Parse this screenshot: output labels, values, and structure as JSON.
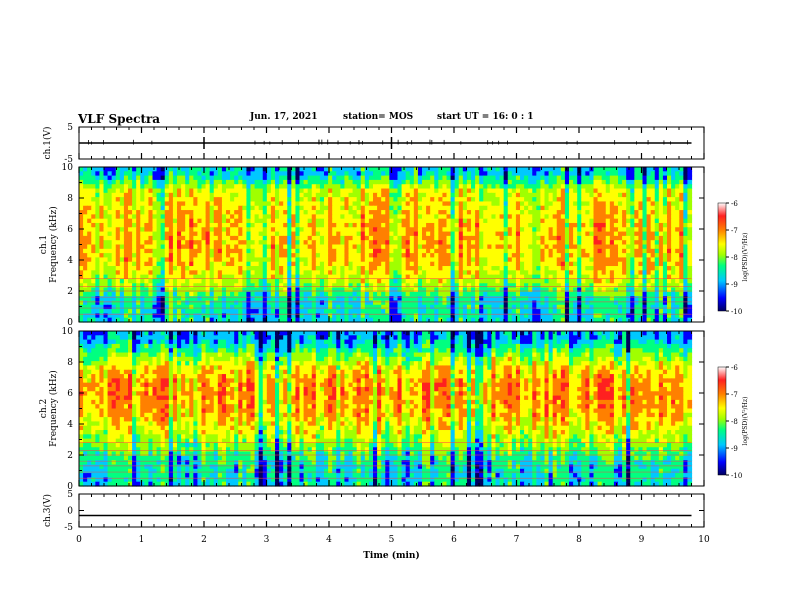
{
  "header": {
    "title": "VLF Spectra",
    "date": "Jun. 17, 2021",
    "station": "station= MOS",
    "start_ut": "start  UT =   16: 0  : 1"
  },
  "colors": {
    "colormap": [
      "#000060",
      "#0000ff",
      "#00c8ff",
      "#00ff80",
      "#a0ff00",
      "#ffff00",
      "#ff8000",
      "#ff2020",
      "#ffffff"
    ],
    "trace": "#000000",
    "background": "#ffffff"
  },
  "chart_data": [
    {
      "type": "line",
      "panel": "ch1_voltage",
      "ylabel": "ch.1(V)",
      "ylim": [
        -5,
        5
      ],
      "yticks": [
        5,
        -5
      ],
      "x": [
        0,
        1,
        2,
        3,
        4,
        5,
        6,
        7,
        8,
        9,
        9.8
      ],
      "y": [
        0,
        0,
        0,
        0,
        0,
        0,
        0,
        0,
        0,
        0,
        0
      ]
    },
    {
      "type": "heatmap",
      "panel": "ch1_spectrogram",
      "ylabel": "ch.1\nFrequency (kHz)",
      "ylim": [
        0,
        10
      ],
      "yticks": [
        0,
        2,
        4,
        6,
        8,
        10
      ],
      "xlim": [
        0,
        10
      ],
      "data_xmax": 9.8,
      "colorbar": {
        "label": "log(PSD)(V²/Hz)",
        "range": [
          -10,
          -6
        ],
        "ticks": [
          -6,
          -7,
          -8,
          -9,
          -10
        ]
      },
      "frequency_profile_kHz": [
        0.5,
        1.5,
        2.5,
        3.5,
        4.5,
        5.5,
        6.5,
        7.5,
        8.5,
        9.5
      ],
      "log_psd_profile": [
        -8.5,
        -8.4,
        -7.6,
        -7.2,
        -7.0,
        -7.0,
        -7.1,
        -7.2,
        -7.4,
        -8.6
      ]
    },
    {
      "type": "heatmap",
      "panel": "ch2_spectrogram",
      "ylabel": "ch.2\nFrequency (kHz)",
      "ylim": [
        0,
        10
      ],
      "yticks": [
        0,
        2,
        4,
        6,
        8,
        10
      ],
      "xlim": [
        0,
        10
      ],
      "data_xmax": 9.8,
      "colorbar": {
        "label": "log(PSD)(V²/Hz)",
        "range": [
          -10,
          -6
        ],
        "ticks": [
          -6,
          -7,
          -8,
          -9,
          -10
        ]
      },
      "frequency_profile_kHz": [
        0.5,
        1.5,
        2.5,
        3.5,
        4.5,
        5.5,
        6.5,
        7.5,
        8.5,
        9.5
      ],
      "log_psd_profile": [
        -8.5,
        -8.4,
        -7.9,
        -7.4,
        -7.0,
        -6.8,
        -6.8,
        -7.1,
        -7.9,
        -8.8
      ]
    },
    {
      "type": "line",
      "panel": "ch3_voltage",
      "ylabel": "ch.3(V)",
      "ylim": [
        -5,
        5
      ],
      "yticks": [
        5,
        0,
        -5
      ],
      "x": [
        0,
        9.8
      ],
      "y": [
        -1.5,
        -1.5
      ]
    }
  ],
  "xaxis": {
    "label": "Time  (min)",
    "ticks": [
      0,
      1,
      2,
      3,
      4,
      5,
      6,
      7,
      8,
      9,
      10
    ]
  }
}
